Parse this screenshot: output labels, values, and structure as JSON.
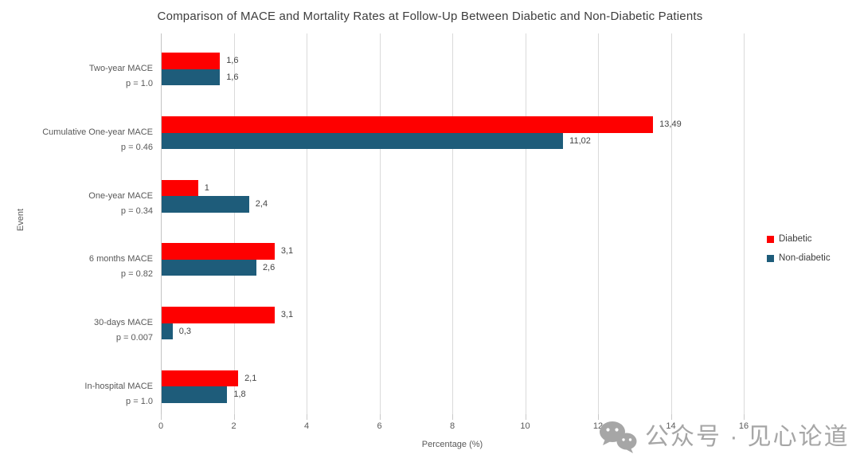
{
  "chart_data": {
    "type": "bar",
    "orientation": "horizontal",
    "title": "Comparison of MACE and Mortality Rates at Follow-Up Between Diabetic and Non-Diabetic Patients",
    "xlabel": "Percentage (%)",
    "ylabel": "Event",
    "xlim": [
      0,
      16
    ],
    "xticks": [
      0,
      2,
      4,
      6,
      8,
      10,
      12,
      14,
      16
    ],
    "grid": true,
    "legend_position": "right",
    "categories": [
      {
        "label": "Two-year MACE",
        "pvalue": "p = 1.0"
      },
      {
        "label": "Cumulative One-year MACE",
        "pvalue": "p = 0.46"
      },
      {
        "label": "One-year MACE",
        "pvalue": "p = 0.34"
      },
      {
        "label": "6 months MACE",
        "pvalue": "p = 0.82"
      },
      {
        "label": "30-days MACE",
        "pvalue": "p = 0.007"
      },
      {
        "label": "In-hospital MACE",
        "pvalue": "p = 1.0"
      }
    ],
    "series": [
      {
        "name": "Diabetic",
        "color": "#fe0000",
        "values": [
          1.6,
          13.49,
          1,
          3.1,
          3.1,
          2.1
        ],
        "labels": [
          "1,6",
          "13,49",
          "1",
          "3,1",
          "3,1",
          "2,1"
        ]
      },
      {
        "name": "Non-diabetic",
        "color": "#1e5c7a",
        "values": [
          1.6,
          11.02,
          2.4,
          2.6,
          0.3,
          1.8
        ],
        "labels": [
          "1,6",
          "11,02",
          "2,4",
          "2,6",
          "0,3",
          "1,8"
        ]
      }
    ]
  },
  "watermark": {
    "icon": "wechat-icon",
    "text": "公众号 · 见心论道"
  },
  "colors": {
    "diabetic": "#fe0000",
    "non_diabetic": "#1e5c7a",
    "gridline": "#dadada",
    "axis_text": "#595959",
    "title_text": "#3d3d3d",
    "watermark": "#a6a6a6"
  }
}
